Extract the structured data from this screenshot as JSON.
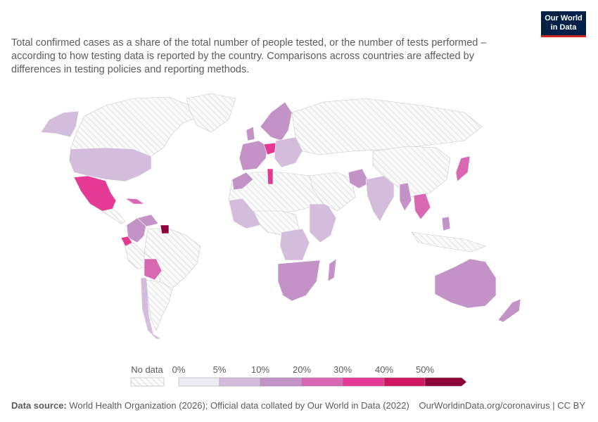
{
  "header": {
    "subtitle": "Total confirmed cases as a share of the total number of people tested, or the number of tests performed – according to how testing data is reported by the country. Comparisons across countries are affected by differences in testing policies and reporting methods.",
    "logo_line1": "Our World",
    "logo_line2": "in Data"
  },
  "legend": {
    "no_data_label": "No data",
    "bins": [
      "0%",
      "5%",
      "10%",
      "20%",
      "30%",
      "40%",
      "50%"
    ],
    "colors": [
      "#ecebf4",
      "#d4bddc",
      "#c393c8",
      "#d867b4",
      "#e43a95",
      "#cf1663",
      "#8e0039"
    ],
    "no_data_color": "#e6e6e6"
  },
  "footer": {
    "source_label": "Data source:",
    "source_text": " World Health Organization (2026); Official data collated by Our World in Data (2022)",
    "url_license": "OurWorldinData.org/coronavirus | CC BY"
  },
  "map_data": {
    "type": "choropleth",
    "regions": [
      {
        "name": "Canada",
        "bin": "nodata"
      },
      {
        "name": "Alaska",
        "bin": "5-10%"
      },
      {
        "name": "Greenland",
        "bin": "nodata"
      },
      {
        "name": "United States",
        "bin": "5-10%"
      },
      {
        "name": "Mexico",
        "bin": "30-40%"
      },
      {
        "name": "Cuba",
        "bin": "20-30%"
      },
      {
        "name": "Colombia",
        "bin": "10-20%"
      },
      {
        "name": "Ecuador",
        "bin": "30-40%"
      },
      {
        "name": "Venezuela",
        "bin": "10-20%"
      },
      {
        "name": "Suriname",
        "bin": "50%+"
      },
      {
        "name": "Brazil",
        "bin": "nodata"
      },
      {
        "name": "Bolivia",
        "bin": "20-30%"
      },
      {
        "name": "Peru",
        "bin": "nodata"
      },
      {
        "name": "Chile",
        "bin": "5-10%"
      },
      {
        "name": "Argentina",
        "bin": "nodata"
      },
      {
        "name": "Europe",
        "bin": "10-20%"
      },
      {
        "name": "Austria",
        "bin": "30-40%"
      },
      {
        "name": "Russia",
        "bin": "nodata"
      },
      {
        "name": "Africa north",
        "bin": "nodata"
      },
      {
        "name": "Tunisia",
        "bin": "30-40%"
      },
      {
        "name": "Morocco",
        "bin": "10-20%"
      },
      {
        "name": "West Africa",
        "bin": "5-10%"
      },
      {
        "name": "Central Africa",
        "bin": "nodata"
      },
      {
        "name": "East Africa",
        "bin": "5-10%"
      },
      {
        "name": "DR Congo",
        "bin": "5-10%"
      },
      {
        "name": "Southern Africa",
        "bin": "10-20%"
      },
      {
        "name": "Madagascar",
        "bin": "10-20%"
      },
      {
        "name": "Middle East",
        "bin": "nodata"
      },
      {
        "name": "Iran",
        "bin": "10-20%"
      },
      {
        "name": "India",
        "bin": "5-10%"
      },
      {
        "name": "China",
        "bin": "nodata"
      },
      {
        "name": "Myanmar",
        "bin": "10-20%"
      },
      {
        "name": "Thailand",
        "bin": "20-30%"
      },
      {
        "name": "Japan",
        "bin": "20-30%"
      },
      {
        "name": "Philippines",
        "bin": "10-20%"
      },
      {
        "name": "Indonesia",
        "bin": "nodata"
      },
      {
        "name": "Australia",
        "bin": "10-20%"
      },
      {
        "name": "New Zealand",
        "bin": "10-20%"
      }
    ]
  }
}
